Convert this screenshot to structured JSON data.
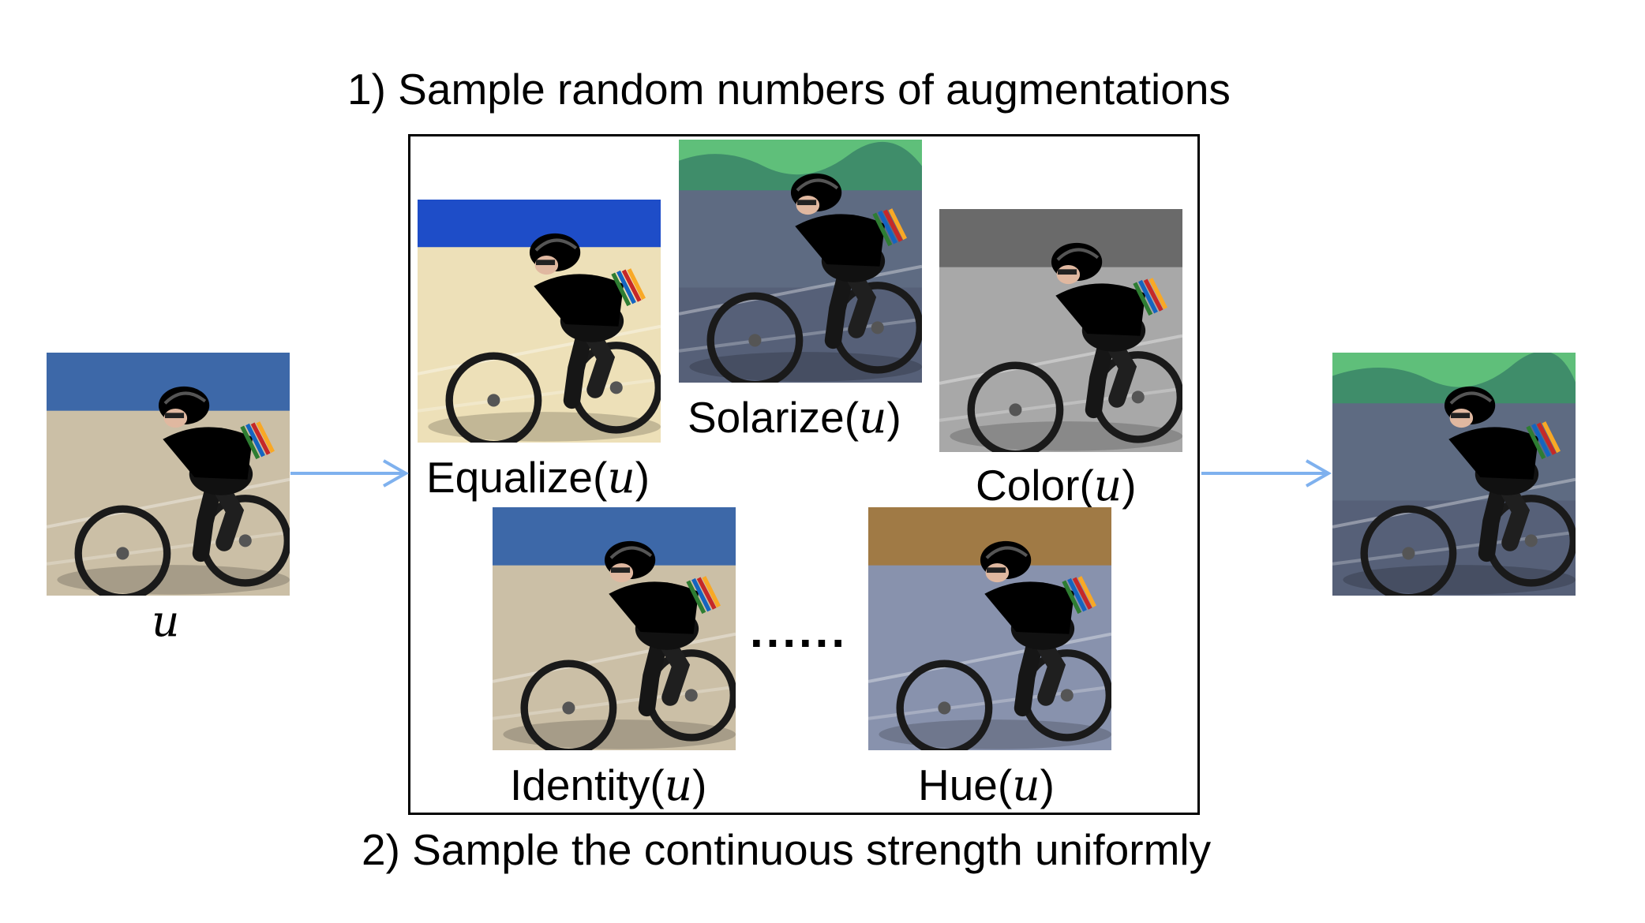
{
  "headings": {
    "top": "1) Sample random numbers of augmentations",
    "bottom": "2) Sample the continuous strength uniformly"
  },
  "variable": "u",
  "augmentations": {
    "equalize": {
      "fn": "Equalize",
      "open": "(",
      "var": "u",
      "close": ")"
    },
    "solarize": {
      "fn": "Solarize",
      "open": "(",
      "var": "u",
      "close": ")"
    },
    "color": {
      "fn": "Color",
      "open": "(",
      "var": "u",
      "close": ")"
    },
    "identity": {
      "fn": "Identity",
      "open": "(",
      "var": "u",
      "close": ")"
    },
    "hue": {
      "fn": "Hue",
      "open": "(",
      "var": "u",
      "close": ")"
    }
  },
  "ellipsis": "......",
  "colors": {
    "arrow": "#7fb1ee",
    "frame": "#000000"
  }
}
